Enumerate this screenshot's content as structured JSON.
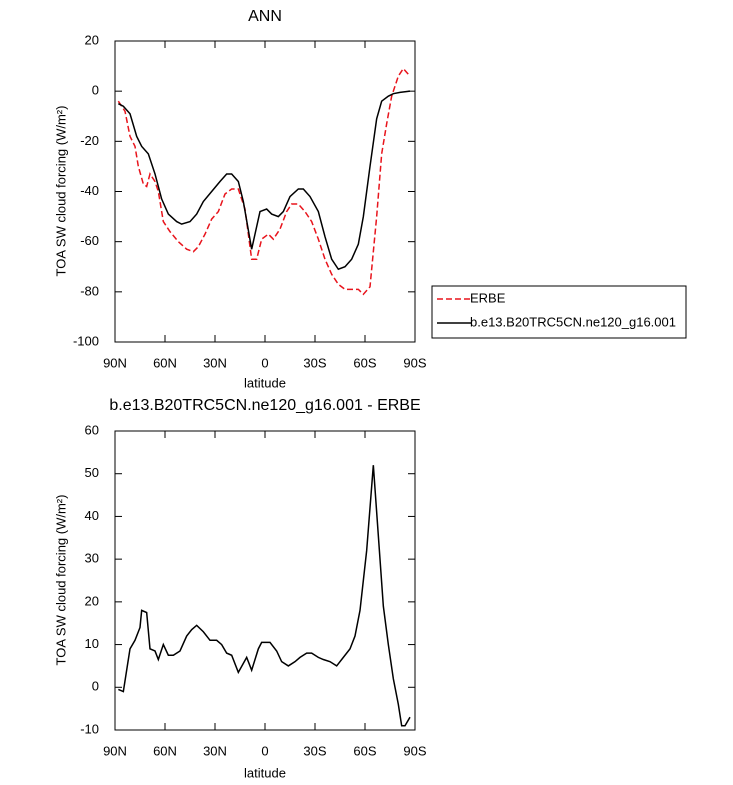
{
  "chart_data": [
    {
      "type": "line",
      "title": "ANN",
      "xlabel": "latitude",
      "ylabel": "TOA SW cloud forcing (W/m²)",
      "xlim": [
        90,
        -90
      ],
      "xticks": [
        {
          "value": 90,
          "label": "90N"
        },
        {
          "value": 60,
          "label": "60N"
        },
        {
          "value": 30,
          "label": "30N"
        },
        0,
        {
          "value": -30,
          "label": "30S"
        },
        {
          "value": -60,
          "label": "60S"
        },
        {
          "value": -90,
          "label": "90S"
        }
      ],
      "ylim": [
        -100,
        20
      ],
      "yticks": [
        -100,
        -80,
        -60,
        -40,
        -20,
        0,
        20
      ],
      "legend": "right",
      "series": [
        {
          "name": "ERBE",
          "color": "#e8141c",
          "dash": true,
          "x": [
            88,
            84,
            81,
            78,
            76,
            73,
            71,
            69,
            66,
            64,
            61,
            57,
            52,
            47,
            43,
            40,
            36,
            32,
            28,
            24,
            20,
            16,
            12,
            8,
            5,
            2,
            -2,
            -5,
            -9,
            -13,
            -16,
            -20,
            -24,
            -28,
            -32,
            -36,
            -40,
            -44,
            -48,
            -52,
            -56,
            -59,
            -63,
            -67,
            -70,
            -73,
            -76,
            -80,
            -83,
            -87
          ],
          "values": [
            -4,
            -8,
            -18,
            -22,
            -30,
            -37,
            -38,
            -33,
            -36,
            -40,
            -52,
            -56,
            -60,
            -63,
            -64,
            -62,
            -57,
            -51,
            -48,
            -41,
            -39,
            -39,
            -47,
            -67,
            -67,
            -59,
            -57,
            -59,
            -55,
            -48,
            -45,
            -45,
            -48,
            -52,
            -59,
            -67,
            -73,
            -77,
            -79,
            -79,
            -79,
            -81,
            -78,
            -50,
            -25,
            -13,
            -2,
            6,
            9,
            6
          ]
        },
        {
          "name": "b.e13.B20TRC5CN.ne120_g16.001",
          "color": "#000000",
          "dash": false,
          "x": [
            88,
            85,
            81,
            77,
            74,
            70,
            66,
            62,
            58,
            53,
            50,
            45,
            41,
            37,
            32,
            27,
            23,
            20,
            16,
            13,
            8,
            6,
            3,
            -1,
            -4,
            -8,
            -11,
            -15,
            -20,
            -23,
            -27,
            -32,
            -36,
            -40,
            -44,
            -48,
            -52,
            -56,
            -59,
            -63,
            -67,
            -70,
            -74,
            -77,
            -81,
            -87
          ],
          "values": [
            -5,
            -6,
            -9,
            -18,
            -22,
            -25,
            -33,
            -43,
            -49,
            -52,
            -53,
            -52,
            -49,
            -44,
            -40,
            -36,
            -33,
            -33,
            -36,
            -44,
            -63,
            -57,
            -48,
            -47,
            -49,
            -50,
            -48,
            -42,
            -39,
            -39,
            -42,
            -48,
            -58,
            -67,
            -71,
            -70,
            -67,
            -61,
            -50,
            -30,
            -11,
            -4,
            -2,
            -1,
            -0.5,
            0
          ]
        }
      ]
    },
    {
      "type": "line",
      "title": "b.e13.B20TRC5CN.ne120_g16.001 - ERBE",
      "xlabel": "latitude",
      "ylabel": "TOA SW cloud forcing (W/m²)",
      "xlim": [
        90,
        -90
      ],
      "xticks": [
        {
          "value": 90,
          "label": "90N"
        },
        {
          "value": 60,
          "label": "60N"
        },
        {
          "value": 30,
          "label": "30N"
        },
        0,
        {
          "value": -30,
          "label": "30S"
        },
        {
          "value": -60,
          "label": "60S"
        },
        {
          "value": -90,
          "label": "90S"
        }
      ],
      "ylim": [
        -10,
        60
      ],
      "yticks": [
        -10,
        0,
        10,
        20,
        30,
        40,
        50,
        60
      ],
      "series": [
        {
          "color": "#000000",
          "dash": false,
          "x": [
            88,
            85,
            81,
            78,
            75,
            74,
            71,
            69,
            66,
            64,
            61,
            58,
            55,
            51,
            47,
            44,
            41,
            37,
            33,
            29,
            26,
            23,
            20,
            16,
            11,
            8,
            4,
            2,
            -3,
            -7,
            -10,
            -14,
            -18,
            -21,
            -25,
            -28,
            -32,
            -35,
            -39,
            -43,
            -47,
            -51,
            -54,
            -57,
            -61,
            -65,
            -71,
            -74,
            -77,
            -80,
            -82,
            -84,
            -87
          ],
          "values": [
            -0.5,
            -1,
            9,
            11,
            14,
            18,
            17.5,
            9,
            8.5,
            6.5,
            10,
            7.5,
            7.5,
            8.5,
            12,
            13.5,
            14.5,
            13,
            11,
            11,
            10,
            8,
            7.5,
            3.5,
            7,
            4,
            9,
            10.5,
            10.5,
            8.5,
            6,
            5,
            6,
            7,
            8,
            8,
            7,
            6.5,
            6,
            5,
            7,
            9,
            12,
            18,
            32,
            52,
            19,
            10,
            2,
            -4,
            -9,
            -9,
            -7
          ]
        }
      ]
    }
  ]
}
